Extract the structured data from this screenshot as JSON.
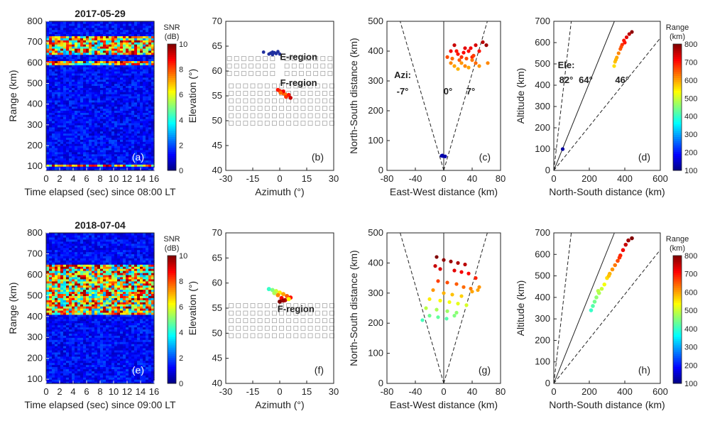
{
  "colors": {
    "axis": "#222222",
    "grid_box": "#9a9a9a",
    "e_region": "#1f2f9f"
  },
  "colorbar_snr": {
    "label_line1": "SNR",
    "label_line2": "(dB)",
    "ticks": [
      "0",
      "2",
      "4",
      "6",
      "8",
      "10"
    ],
    "range": [
      0,
      10
    ]
  },
  "colorbar_range": {
    "label_line1": "Range",
    "label_line2": "(km)",
    "ticks": [
      "100",
      "200",
      "300",
      "400",
      "500",
      "600",
      "700",
      "800"
    ],
    "range": [
      100,
      800
    ]
  },
  "chart_data": [
    {
      "panel": "(a)",
      "type": "heatmap",
      "title": "2017-05-29",
      "xlabel": "Time elapsed (sec) since 08:00   LT",
      "ylabel": "Range (km)",
      "xlim": [
        0,
        16
      ],
      "ylim": [
        80,
        800
      ],
      "xticks": [
        "0",
        "2",
        "4",
        "6",
        "8",
        "10",
        "12",
        "14",
        "16"
      ],
      "yticks": [
        "100",
        "200",
        "300",
        "400",
        "500",
        "600",
        "700",
        "800"
      ],
      "echo_bands_km": [
        [
          100,
          112
        ],
        [
          595,
          610
        ],
        [
          640,
          725
        ]
      ]
    },
    {
      "panel": "(b)",
      "type": "scatter",
      "xlabel": "Azimuth (°)",
      "ylabel": "Elevation (°)",
      "xlim": [
        -30,
        30
      ],
      "ylim": [
        40,
        70
      ],
      "xticks": [
        "-30",
        "-15",
        "0",
        "15",
        "30"
      ],
      "yticks": [
        "40",
        "45",
        "50",
        "55",
        "60",
        "65",
        "70"
      ],
      "annotations": [
        "E-region",
        "F-region"
      ],
      "e_region_points": [
        [
          -9,
          63.8
        ],
        [
          -6,
          63.4
        ],
        [
          -5,
          63.6
        ],
        [
          -4,
          63.3
        ],
        [
          -3,
          63.7
        ],
        [
          -2,
          63.5
        ],
        [
          -1,
          63.9
        ],
        [
          0,
          63.4
        ],
        [
          -4,
          63.8
        ]
      ],
      "f_region_points": [
        [
          -1,
          56.2,
          700
        ],
        [
          0,
          56,
          690
        ],
        [
          1,
          55.8,
          680
        ],
        [
          2,
          55.5,
          660
        ],
        [
          3,
          55.3,
          640
        ],
        [
          4,
          55,
          620
        ],
        [
          5,
          55.2,
          700
        ],
        [
          2,
          55.9,
          720
        ],
        [
          0.5,
          55.6,
          640
        ],
        [
          3.5,
          54.8,
          680
        ],
        [
          6,
          54.6,
          750
        ]
      ]
    },
    {
      "panel": "(c)",
      "type": "scatter",
      "xlabel": "East-West distance (km)",
      "ylabel": "North-South distance (km)",
      "xlim": [
        -80,
        80
      ],
      "ylim": [
        0,
        500
      ],
      "xticks": [
        "-80",
        "-40",
        "0",
        "40",
        "80"
      ],
      "yticks": [
        "0",
        "100",
        "200",
        "300",
        "400",
        "500"
      ],
      "annotations": [
        "Azi:",
        "-7°",
        "0°",
        "7°"
      ],
      "points": [
        [
          -1,
          48,
          130
        ],
        [
          -3,
          49,
          130
        ],
        [
          2,
          47,
          130
        ],
        [
          -2,
          50,
          130
        ],
        [
          10,
          400,
          720
        ],
        [
          15,
          420,
          750
        ],
        [
          20,
          390,
          700
        ],
        [
          25,
          380,
          680
        ],
        [
          30,
          410,
          730
        ],
        [
          35,
          400,
          710
        ],
        [
          40,
          380,
          690
        ],
        [
          45,
          420,
          740
        ],
        [
          50,
          400,
          700
        ],
        [
          55,
          430,
          760
        ],
        [
          60,
          420,
          780
        ],
        [
          10,
          360,
          620
        ],
        [
          15,
          350,
          600
        ],
        [
          20,
          340,
          590
        ],
        [
          25,
          360,
          610
        ],
        [
          30,
          350,
          620
        ],
        [
          35,
          345,
          600
        ],
        [
          40,
          370,
          630
        ],
        [
          45,
          360,
          640
        ],
        [
          50,
          350,
          610
        ],
        [
          18,
          400,
          700
        ],
        [
          28,
          395,
          710
        ],
        [
          38,
          410,
          720
        ],
        [
          22,
          370,
          650
        ],
        [
          32,
          375,
          660
        ],
        [
          42,
          385,
          670
        ],
        [
          5,
          380,
          660
        ],
        [
          12,
          375,
          640
        ],
        [
          62,
          360,
          620
        ]
      ]
    },
    {
      "panel": "(d)",
      "type": "scatter",
      "xlabel": "North-South distance (km)",
      "ylabel": "Altitude (km)",
      "xlim": [
        0,
        600
      ],
      "ylim": [
        0,
        700
      ],
      "xticks": [
        "0",
        "200",
        "400",
        "600"
      ],
      "yticks": [
        "0",
        "100",
        "200",
        "300",
        "400",
        "500",
        "600",
        "700"
      ],
      "annotations": [
        "Ele:",
        "82°",
        "64°",
        "46°"
      ],
      "points": [
        [
          50,
          100,
          120
        ],
        [
          340,
          490,
          560
        ],
        [
          345,
          510,
          580
        ],
        [
          355,
          530,
          600
        ],
        [
          365,
          550,
          620
        ],
        [
          375,
          570,
          650
        ],
        [
          385,
          590,
          680
        ],
        [
          395,
          610,
          700
        ],
        [
          410,
          625,
          730
        ],
        [
          425,
          640,
          760
        ],
        [
          440,
          650,
          790
        ],
        [
          350,
          520,
          590
        ],
        [
          380,
          580,
          660
        ],
        [
          400,
          600,
          700
        ]
      ]
    },
    {
      "panel": "(e)",
      "type": "heatmap",
      "title": "2018-07-04",
      "xlabel": "Time elapsed (sec) since 09:00   LT",
      "ylabel": "Range (km)",
      "xlim": [
        0,
        16
      ],
      "ylim": [
        80,
        800
      ],
      "xticks": [
        "0",
        "2",
        "4",
        "6",
        "8",
        "10",
        "12",
        "14",
        "16"
      ],
      "yticks": [
        "100",
        "200",
        "300",
        "400",
        "500",
        "600",
        "700",
        "800"
      ],
      "echo_bands_km": [
        [
          410,
          650
        ]
      ]
    },
    {
      "panel": "(f)",
      "type": "scatter",
      "xlabel": "Azimuth (°)",
      "ylabel": "Elevation (°)",
      "xlim": [
        -30,
        30
      ],
      "ylim": [
        40,
        70
      ],
      "xticks": [
        "-30",
        "-15",
        "0",
        "15",
        "30"
      ],
      "yticks": [
        "40",
        "45",
        "50",
        "55",
        "60",
        "65",
        "70"
      ],
      "annotations": [
        "F-region"
      ],
      "points": [
        [
          -6,
          58.8,
          400
        ],
        [
          -4,
          58.6,
          450
        ],
        [
          -2,
          58.4,
          500
        ],
        [
          0,
          58.1,
          550
        ],
        [
          2,
          57.8,
          600
        ],
        [
          4,
          57.4,
          650
        ],
        [
          6,
          57.1,
          700
        ],
        [
          3,
          56.6,
          760
        ],
        [
          1,
          57,
          720
        ],
        [
          -1,
          57.6,
          620
        ],
        [
          5,
          56.8,
          540
        ],
        [
          -3,
          58,
          480
        ],
        [
          0,
          56.3,
          800
        ],
        [
          2,
          56.5,
          780
        ]
      ]
    },
    {
      "panel": "(g)",
      "type": "scatter",
      "xlabel": "East-West distance (km)",
      "ylabel": "North-South distance (km)",
      "xlim": [
        -80,
        80
      ],
      "ylim": [
        0,
        500
      ],
      "xticks": [
        "-80",
        "-40",
        "0",
        "40",
        "80"
      ],
      "yticks": [
        "0",
        "100",
        "200",
        "300",
        "400",
        "500"
      ],
      "points": [
        [
          -10,
          420,
          800
        ],
        [
          0,
          410,
          790
        ],
        [
          10,
          405,
          780
        ],
        [
          20,
          400,
          770
        ],
        [
          30,
          395,
          760
        ],
        [
          -5,
          380,
          740
        ],
        [
          15,
          375,
          730
        ],
        [
          25,
          370,
          720
        ],
        [
          35,
          365,
          710
        ],
        [
          45,
          350,
          690
        ],
        [
          -8,
          340,
          670
        ],
        [
          5,
          335,
          660
        ],
        [
          18,
          330,
          650
        ],
        [
          28,
          320,
          640
        ],
        [
          38,
          315,
          630
        ],
        [
          -15,
          310,
          610
        ],
        [
          0,
          300,
          590
        ],
        [
          12,
          295,
          580
        ],
        [
          25,
          290,
          570
        ],
        [
          40,
          305,
          600
        ],
        [
          -20,
          280,
          550
        ],
        [
          -5,
          275,
          540
        ],
        [
          8,
          270,
          530
        ],
        [
          20,
          265,
          520
        ],
        [
          32,
          260,
          510
        ],
        [
          -25,
          250,
          490
        ],
        [
          -10,
          245,
          480
        ],
        [
          5,
          240,
          470
        ],
        [
          18,
          235,
          460
        ],
        [
          -20,
          225,
          440
        ],
        [
          -8,
          220,
          430
        ],
        [
          4,
          215,
          420
        ],
        [
          -30,
          210,
          410
        ],
        [
          15,
          225,
          450
        ],
        [
          48,
          310,
          600
        ],
        [
          -12,
          390,
          750
        ],
        [
          50,
          320,
          610
        ]
      ]
    },
    {
      "panel": "(h)",
      "type": "scatter",
      "xlabel": "North-South distance (km)",
      "ylabel": "Altitude (km)",
      "xlim": [
        0,
        600
      ],
      "ylim": [
        0,
        700
      ],
      "xticks": [
        "0",
        "200",
        "400",
        "600"
      ],
      "yticks": [
        "0",
        "100",
        "200",
        "300",
        "400",
        "500",
        "600",
        "700"
      ],
      "points": [
        [
          210,
          340,
          400
        ],
        [
          220,
          360,
          420
        ],
        [
          230,
          380,
          440
        ],
        [
          240,
          400,
          460
        ],
        [
          255,
          420,
          480
        ],
        [
          270,
          440,
          500
        ],
        [
          285,
          460,
          530
        ],
        [
          300,
          490,
          560
        ],
        [
          315,
          510,
          590
        ],
        [
          330,
          530,
          610
        ],
        [
          345,
          550,
          630
        ],
        [
          360,
          570,
          660
        ],
        [
          375,
          595,
          690
        ],
        [
          390,
          620,
          720
        ],
        [
          405,
          645,
          750
        ],
        [
          420,
          665,
          780
        ],
        [
          440,
          675,
          800
        ],
        [
          250,
          430,
          490
        ],
        [
          310,
          500,
          580
        ],
        [
          370,
          585,
          680
        ]
      ]
    }
  ]
}
